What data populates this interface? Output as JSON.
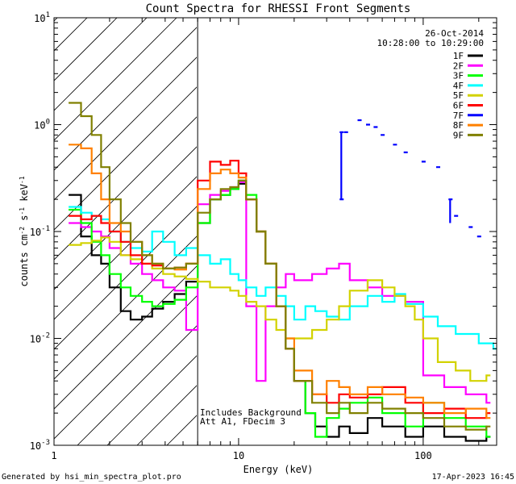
{
  "chart_data": {
    "type": "line",
    "title": "Count Spectra for RHESSI Front Segments",
    "xlabel": "Energy (keV)",
    "ylabel": "counts cm^-2 s^-1 keV^-1",
    "xscale": "log",
    "yscale": "log",
    "xlim": [
      1,
      250
    ],
    "ylim": [
      0.001,
      10
    ],
    "x_tick_labels": [
      {
        "value": 1,
        "label": "1"
      },
      {
        "value": 10,
        "label": "10"
      },
      {
        "value": 100,
        "label": "100"
      }
    ],
    "y_tick_labels": [
      {
        "value": 0.001,
        "mant": "10",
        "exp": "-3"
      },
      {
        "value": 0.01,
        "mant": "10",
        "exp": "-2"
      },
      {
        "value": 0.1,
        "mant": "10",
        "exp": "-1"
      },
      {
        "value": 1,
        "mant": "10",
        "exp": "0"
      },
      {
        "value": 10,
        "mant": "10",
        "exp": "1"
      }
    ],
    "shaded_region": {
      "x_min": 1,
      "x_max": 6,
      "style": "diagonal-hatch"
    },
    "threshold_line_x": 6,
    "date": "26-Oct-2014",
    "time_range": "10:28:00 to 10:29:00",
    "annotations": [
      "Includes Background",
      "Att A1, FDecim 3"
    ],
    "footer_left": "Generated by hsi_min_spectra_plot.pro",
    "footer_right": "17-Apr-2023 16:45",
    "series": [
      {
        "name": "1F",
        "color": "#000000",
        "points": [
          [
            1.2,
            0.22
          ],
          [
            1.4,
            0.09
          ],
          [
            1.6,
            0.06
          ],
          [
            1.8,
            0.05
          ],
          [
            2.0,
            0.03
          ],
          [
            2.3,
            0.018
          ],
          [
            2.6,
            0.015
          ],
          [
            3.0,
            0.016
          ],
          [
            3.4,
            0.019
          ],
          [
            3.9,
            0.022
          ],
          [
            4.5,
            0.026
          ],
          [
            5.2,
            0.034
          ],
          [
            6.0,
            0.12
          ],
          [
            7.0,
            0.2
          ],
          [
            8.0,
            0.22
          ],
          [
            9.0,
            0.25
          ],
          [
            10.0,
            0.28
          ],
          [
            11.0,
            0.2
          ],
          [
            12.5,
            0.1
          ],
          [
            14.0,
            0.05
          ],
          [
            16.0,
            0.02
          ],
          [
            18.0,
            0.008
          ],
          [
            20.0,
            0.004
          ],
          [
            23.0,
            0.002
          ],
          [
            26.0,
            0.0015
          ],
          [
            30.0,
            0.0012
          ],
          [
            35.0,
            0.0015
          ],
          [
            40.0,
            0.0013
          ],
          [
            50.0,
            0.0018
          ],
          [
            60.0,
            0.0015
          ],
          [
            80.0,
            0.0012
          ],
          [
            100.0,
            0.0015
          ],
          [
            130.0,
            0.0012
          ],
          [
            170.0,
            0.0011
          ],
          [
            220.0,
            0.0012
          ]
        ]
      },
      {
        "name": "2F",
        "color": "#ff00ff",
        "points": [
          [
            1.2,
            0.12
          ],
          [
            1.4,
            0.11
          ],
          [
            1.6,
            0.1
          ],
          [
            1.8,
            0.09
          ],
          [
            2.0,
            0.07
          ],
          [
            2.3,
            0.06
          ],
          [
            2.6,
            0.05
          ],
          [
            3.0,
            0.04
          ],
          [
            3.4,
            0.035
          ],
          [
            3.9,
            0.03
          ],
          [
            4.5,
            0.028
          ],
          [
            5.2,
            0.012
          ],
          [
            6.0,
            0.18
          ],
          [
            7.0,
            0.22
          ],
          [
            8.0,
            0.24
          ],
          [
            9.0,
            0.26
          ],
          [
            10.0,
            0.29
          ],
          [
            11.0,
            0.02
          ],
          [
            12.5,
            0.004
          ],
          [
            14.0,
            0.02
          ],
          [
            16.0,
            0.03
          ],
          [
            18.0,
            0.04
          ],
          [
            20.0,
            0.035
          ],
          [
            25.0,
            0.04
          ],
          [
            30.0,
            0.045
          ],
          [
            35.0,
            0.05
          ],
          [
            40.0,
            0.035
          ],
          [
            50.0,
            0.03
          ],
          [
            60.0,
            0.025
          ],
          [
            80.0,
            0.022
          ],
          [
            100.0,
            0.0045
          ],
          [
            130.0,
            0.0035
          ],
          [
            170.0,
            0.003
          ],
          [
            220.0,
            0.0025
          ]
        ]
      },
      {
        "name": "3F",
        "color": "#00ff00",
        "points": [
          [
            1.2,
            0.16
          ],
          [
            1.4,
            0.12
          ],
          [
            1.6,
            0.08
          ],
          [
            1.8,
            0.06
          ],
          [
            2.0,
            0.04
          ],
          [
            2.3,
            0.03
          ],
          [
            2.6,
            0.025
          ],
          [
            3.0,
            0.022
          ],
          [
            3.4,
            0.02
          ],
          [
            3.9,
            0.021
          ],
          [
            4.5,
            0.023
          ],
          [
            5.2,
            0.03
          ],
          [
            6.0,
            0.12
          ],
          [
            7.0,
            0.2
          ],
          [
            8.0,
            0.22
          ],
          [
            9.0,
            0.25
          ],
          [
            10.0,
            0.3
          ],
          [
            11.0,
            0.22
          ],
          [
            12.5,
            0.1
          ],
          [
            14.0,
            0.05
          ],
          [
            16.0,
            0.02
          ],
          [
            18.0,
            0.008
          ],
          [
            20.0,
            0.004
          ],
          [
            23.0,
            0.002
          ],
          [
            26.0,
            0.0012
          ],
          [
            30.0,
            0.0018
          ],
          [
            35.0,
            0.0022
          ],
          [
            40.0,
            0.0025
          ],
          [
            50.0,
            0.0028
          ],
          [
            60.0,
            0.002
          ],
          [
            80.0,
            0.0015
          ],
          [
            100.0,
            0.0025
          ],
          [
            130.0,
            0.0018
          ],
          [
            170.0,
            0.0015
          ],
          [
            220.0,
            0.0012
          ]
        ]
      },
      {
        "name": "4F",
        "color": "#00ffff",
        "points": [
          [
            1.2,
            0.17
          ],
          [
            1.4,
            0.15
          ],
          [
            1.6,
            0.14
          ],
          [
            1.8,
            0.13
          ],
          [
            2.0,
            0.1
          ],
          [
            2.3,
            0.08
          ],
          [
            2.6,
            0.07
          ],
          [
            3.0,
            0.065
          ],
          [
            3.4,
            0.1
          ],
          [
            3.9,
            0.08
          ],
          [
            4.5,
            0.06
          ],
          [
            5.2,
            0.07
          ],
          [
            6.0,
            0.06
          ],
          [
            7.0,
            0.05
          ],
          [
            8.0,
            0.055
          ],
          [
            9.0,
            0.04
          ],
          [
            10.0,
            0.035
          ],
          [
            11.0,
            0.03
          ],
          [
            12.5,
            0.025
          ],
          [
            14.0,
            0.03
          ],
          [
            16.0,
            0.025
          ],
          [
            18.0,
            0.02
          ],
          [
            20.0,
            0.015
          ],
          [
            23.0,
            0.02
          ],
          [
            26.0,
            0.018
          ],
          [
            30.0,
            0.016
          ],
          [
            35.0,
            0.015
          ],
          [
            40.0,
            0.02
          ],
          [
            50.0,
            0.025
          ],
          [
            60.0,
            0.022
          ],
          [
            70.0,
            0.026
          ],
          [
            80.0,
            0.021
          ],
          [
            100.0,
            0.016
          ],
          [
            120.0,
            0.013
          ],
          [
            150.0,
            0.011
          ],
          [
            200.0,
            0.009
          ],
          [
            240.0,
            0.008
          ]
        ]
      },
      {
        "name": "5F",
        "color": "#d2d200",
        "points": [
          [
            1.2,
            0.075
          ],
          [
            1.4,
            0.078
          ],
          [
            1.6,
            0.082
          ],
          [
            1.8,
            0.088
          ],
          [
            2.0,
            0.08
          ],
          [
            2.3,
            0.06
          ],
          [
            2.6,
            0.055
          ],
          [
            3.0,
            0.05
          ],
          [
            3.4,
            0.045
          ],
          [
            3.9,
            0.04
          ],
          [
            4.5,
            0.038
          ],
          [
            5.2,
            0.036
          ],
          [
            6.0,
            0.034
          ],
          [
            7.0,
            0.03
          ],
          [
            8.0,
            0.03
          ],
          [
            9.0,
            0.028
          ],
          [
            10.0,
            0.025
          ],
          [
            11.0,
            0.022
          ],
          [
            12.5,
            0.02
          ],
          [
            14.0,
            0.015
          ],
          [
            16.0,
            0.012
          ],
          [
            18.0,
            0.01
          ],
          [
            20.0,
            0.01
          ],
          [
            25.0,
            0.012
          ],
          [
            30.0,
            0.015
          ],
          [
            35.0,
            0.02
          ],
          [
            40.0,
            0.028
          ],
          [
            50.0,
            0.035
          ],
          [
            60.0,
            0.03
          ],
          [
            70.0,
            0.025
          ],
          [
            80.0,
            0.02
          ],
          [
            90.0,
            0.015
          ],
          [
            100.0,
            0.01
          ],
          [
            120.0,
            0.006
          ],
          [
            150.0,
            0.005
          ],
          [
            180.0,
            0.004
          ],
          [
            220.0,
            0.0045
          ]
        ]
      },
      {
        "name": "6F",
        "color": "#ff0000",
        "points": [
          [
            1.2,
            0.14
          ],
          [
            1.4,
            0.13
          ],
          [
            1.6,
            0.14
          ],
          [
            1.8,
            0.12
          ],
          [
            2.0,
            0.1
          ],
          [
            2.3,
            0.08
          ],
          [
            2.6,
            0.06
          ],
          [
            3.0,
            0.05
          ],
          [
            3.4,
            0.048
          ],
          [
            3.9,
            0.045
          ],
          [
            4.5,
            0.046
          ],
          [
            5.2,
            0.05
          ],
          [
            6.0,
            0.3
          ],
          [
            7.0,
            0.45
          ],
          [
            8.0,
            0.42
          ],
          [
            9.0,
            0.46
          ],
          [
            10.0,
            0.35
          ],
          [
            11.0,
            0.2
          ],
          [
            12.5,
            0.1
          ],
          [
            14.0,
            0.05
          ],
          [
            16.0,
            0.02
          ],
          [
            18.0,
            0.008
          ],
          [
            20.0,
            0.004
          ],
          [
            25.0,
            0.003
          ],
          [
            30.0,
            0.0025
          ],
          [
            35.0,
            0.003
          ],
          [
            40.0,
            0.0028
          ],
          [
            50.0,
            0.003
          ],
          [
            60.0,
            0.0035
          ],
          [
            80.0,
            0.0025
          ],
          [
            100.0,
            0.002
          ],
          [
            130.0,
            0.0022
          ],
          [
            170.0,
            0.0018
          ],
          [
            220.0,
            0.002
          ]
        ]
      },
      {
        "name": "7F",
        "color": "#0000ff",
        "points": [
          [
            36.0,
            0.85
          ],
          [
            36.0,
            0.2
          ],
          [
            38.0,
            0.85
          ],
          [
            45.0,
            1.1
          ],
          [
            50.0,
            1.0
          ],
          [
            55.0,
            0.95
          ],
          [
            60.0,
            0.8
          ],
          [
            70.0,
            0.65
          ],
          [
            80.0,
            0.55
          ],
          [
            100.0,
            0.45
          ],
          [
            120.0,
            0.4
          ],
          [
            140.0,
            0.2
          ],
          [
            150.0,
            0.14
          ],
          [
            180.0,
            0.11
          ],
          [
            200.0,
            0.09
          ]
        ]
      },
      {
        "name": "8F",
        "color": "#ff8000",
        "points": [
          [
            1.2,
            0.65
          ],
          [
            1.4,
            0.6
          ],
          [
            1.6,
            0.35
          ],
          [
            1.8,
            0.2
          ],
          [
            2.0,
            0.12
          ],
          [
            2.3,
            0.1
          ],
          [
            2.6,
            0.08
          ],
          [
            3.0,
            0.06
          ],
          [
            3.4,
            0.05
          ],
          [
            3.9,
            0.045
          ],
          [
            4.5,
            0.044
          ],
          [
            5.2,
            0.05
          ],
          [
            6.0,
            0.25
          ],
          [
            7.0,
            0.35
          ],
          [
            8.0,
            0.38
          ],
          [
            9.0,
            0.35
          ],
          [
            10.0,
            0.32
          ],
          [
            11.0,
            0.2
          ],
          [
            12.5,
            0.1
          ],
          [
            14.0,
            0.05
          ],
          [
            16.0,
            0.02
          ],
          [
            18.0,
            0.01
          ],
          [
            20.0,
            0.005
          ],
          [
            25.0,
            0.003
          ],
          [
            30.0,
            0.004
          ],
          [
            35.0,
            0.0035
          ],
          [
            40.0,
            0.003
          ],
          [
            50.0,
            0.0035
          ],
          [
            60.0,
            0.003
          ],
          [
            80.0,
            0.0028
          ],
          [
            100.0,
            0.0025
          ],
          [
            130.0,
            0.002
          ],
          [
            170.0,
            0.0022
          ],
          [
            220.0,
            0.0018
          ]
        ]
      },
      {
        "name": "9F",
        "color": "#808000",
        "points": [
          [
            1.2,
            1.6
          ],
          [
            1.4,
            1.2
          ],
          [
            1.6,
            0.8
          ],
          [
            1.8,
            0.4
          ],
          [
            2.0,
            0.2
          ],
          [
            2.3,
            0.12
          ],
          [
            2.6,
            0.08
          ],
          [
            3.0,
            0.06
          ],
          [
            3.4,
            0.05
          ],
          [
            3.9,
            0.045
          ],
          [
            4.5,
            0.046
          ],
          [
            5.2,
            0.05
          ],
          [
            6.0,
            0.15
          ],
          [
            7.0,
            0.2
          ],
          [
            8.0,
            0.25
          ],
          [
            9.0,
            0.26
          ],
          [
            10.0,
            0.3
          ],
          [
            11.0,
            0.2
          ],
          [
            12.5,
            0.1
          ],
          [
            14.0,
            0.05
          ],
          [
            16.0,
            0.02
          ],
          [
            18.0,
            0.008
          ],
          [
            20.0,
            0.004
          ],
          [
            25.0,
            0.0025
          ],
          [
            30.0,
            0.002
          ],
          [
            35.0,
            0.0025
          ],
          [
            40.0,
            0.002
          ],
          [
            50.0,
            0.0025
          ],
          [
            60.0,
            0.0022
          ],
          [
            80.0,
            0.002
          ],
          [
            100.0,
            0.0018
          ],
          [
            130.0,
            0.0015
          ],
          [
            170.0,
            0.0014
          ],
          [
            220.0,
            0.0015
          ]
        ]
      }
    ]
  }
}
